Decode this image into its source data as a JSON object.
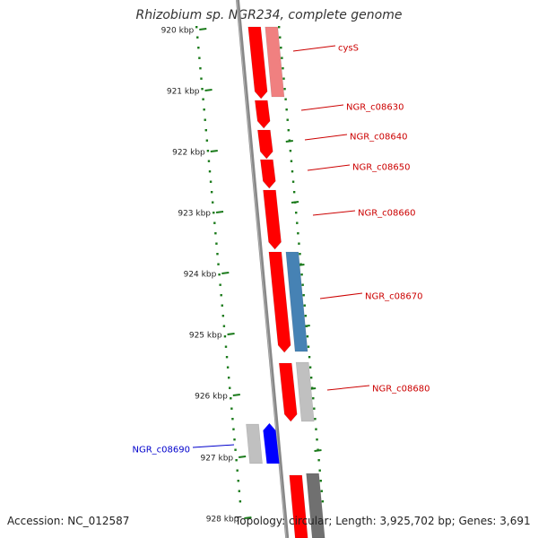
{
  "title": "Rhizobium sp. NGR234, complete genome",
  "footer": {
    "accession": "Accession: NC_012587",
    "topology": "Topology: circular; Length: 3,925,702 bp; Genes: 3,691"
  },
  "colors": {
    "tick": "#1a7a1a",
    "backbone": "#888888",
    "gene_red": "#ff0000",
    "gene_pink": "#f08080",
    "gene_steel": "#4682b4",
    "gene_lightgray": "#c0c0c0",
    "gene_darkgray": "#707070",
    "gene_blue": "#0000ff",
    "label_red": "#cc0000",
    "label_blue": "#0000cc"
  },
  "kbp_ticks": [
    "920 kbp",
    "921 kbp",
    "922 kbp",
    "923 kbp",
    "924 kbp",
    "925 kbp",
    "926 kbp",
    "927 kbp",
    "928 kbp"
  ],
  "gene_labels": [
    {
      "name": "cysS",
      "color": "red"
    },
    {
      "name": "NGR_c08630",
      "color": "red"
    },
    {
      "name": "NGR_c08640",
      "color": "red"
    },
    {
      "name": "NGR_c08650",
      "color": "red"
    },
    {
      "name": "NGR_c08660",
      "color": "red"
    },
    {
      "name": "NGR_c08670",
      "color": "red"
    },
    {
      "name": "NGR_c08680",
      "color": "red"
    },
    {
      "name": "NGR_c08690",
      "color": "blue"
    }
  ]
}
